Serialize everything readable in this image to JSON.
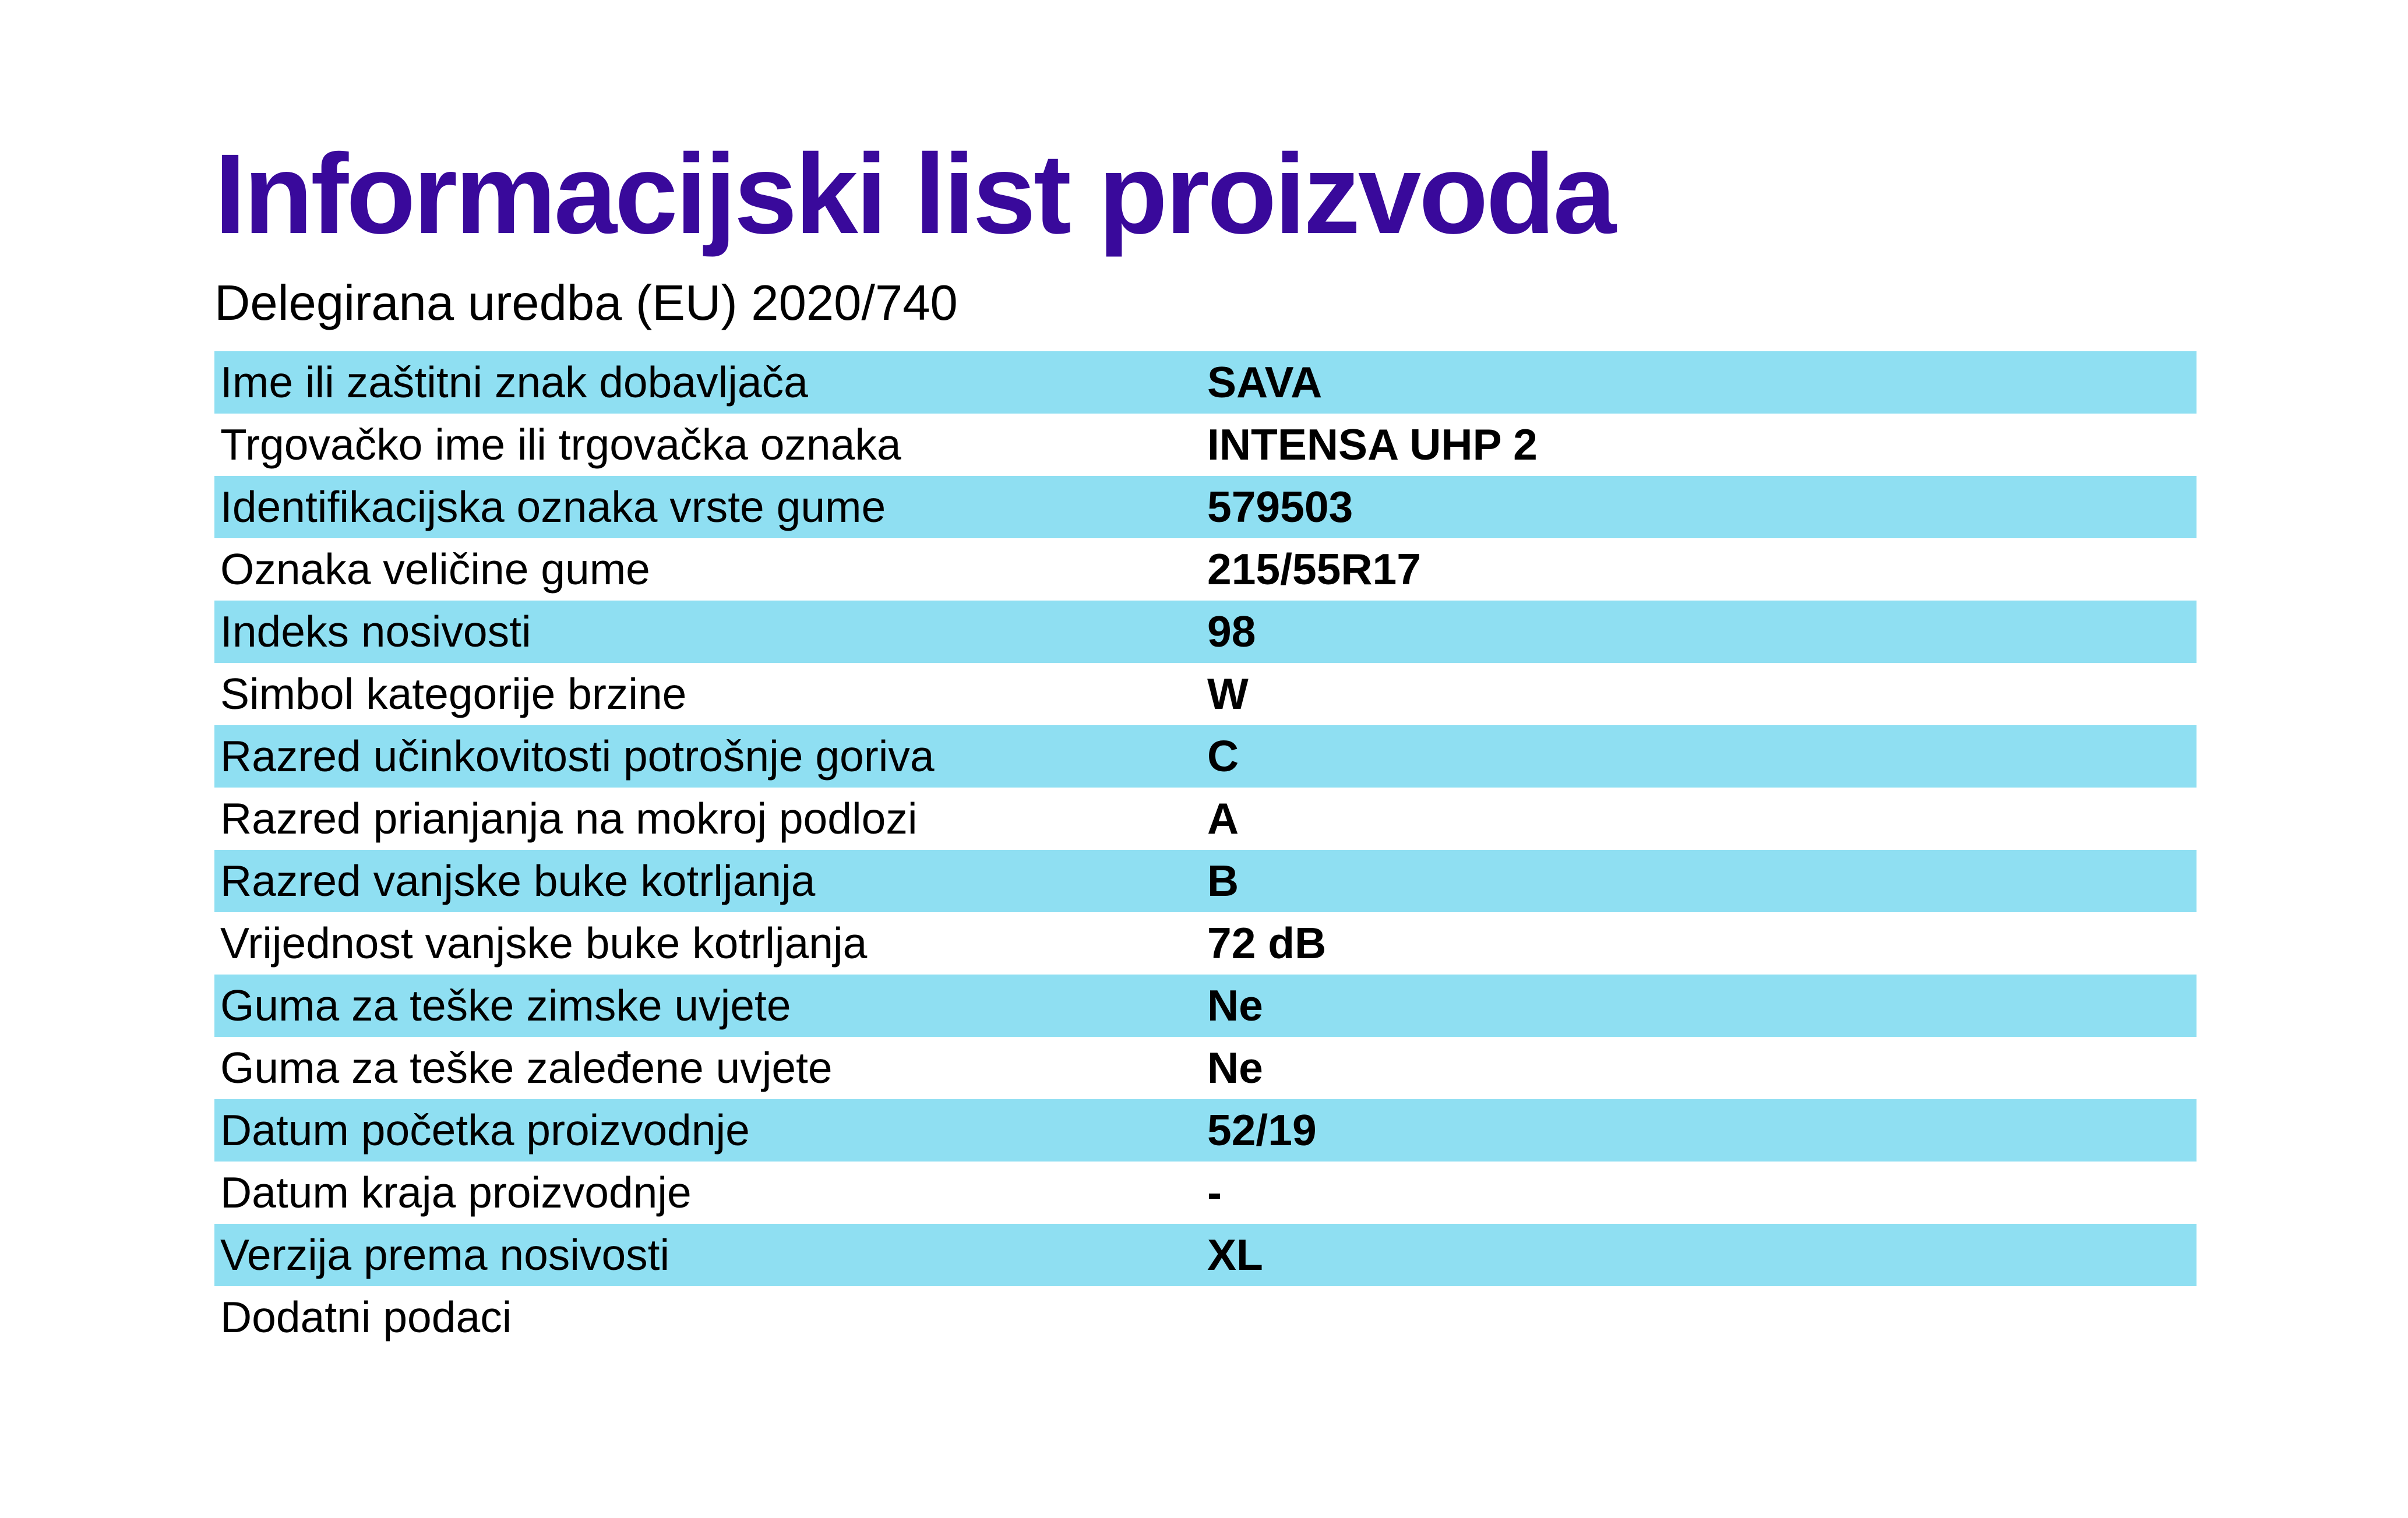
{
  "page": {
    "title": "Informacijski list proizvoda",
    "subtitle": "Delegirana uredba (EU) 2020/740"
  },
  "colors": {
    "title": "#39099B",
    "row_highlight": "#8FDFF2",
    "text": "#000000",
    "background": "#FFFFFF"
  },
  "table": {
    "rows": [
      {
        "label": "Ime ili zaštitni znak dobavljača",
        "value": "SAVA",
        "highlighted": true
      },
      {
        "label": "Trgovačko ime ili trgovačka oznaka",
        "value": "INTENSA UHP 2",
        "highlighted": false
      },
      {
        "label": "Identifikacijska oznaka vrste gume",
        "value": "579503",
        "highlighted": true
      },
      {
        "label": "Oznaka veličine gume",
        "value": "215/55R17",
        "highlighted": false
      },
      {
        "label": "Indeks nosivosti",
        "value": "98",
        "highlighted": true
      },
      {
        "label": "Simbol kategorije brzine",
        "value": "W",
        "highlighted": false
      },
      {
        "label": "Razred učinkovitosti potrošnje goriva",
        "value": "C",
        "highlighted": true
      },
      {
        "label": "Razred prianjanja na mokroj podlozi",
        "value": "A",
        "highlighted": false
      },
      {
        "label": "Razred vanjske buke kotrljanja",
        "value": "B",
        "highlighted": true
      },
      {
        "label": "Vrijednost vanjske buke kotrljanja",
        "value": "72 dB",
        "highlighted": false
      },
      {
        "label": "Guma za teške zimske uvjete",
        "value": "Ne",
        "highlighted": true
      },
      {
        "label": "Guma za teške zaleđene uvjete",
        "value": "Ne",
        "highlighted": false
      },
      {
        "label": "Datum početka proizvodnje",
        "value": "52/19",
        "highlighted": true
      },
      {
        "label": "Datum kraja proizvodnje",
        "value": "-",
        "highlighted": false
      },
      {
        "label": "Verzija prema nosivosti",
        "value": "XL",
        "highlighted": true
      },
      {
        "label": "Dodatni podaci",
        "value": "",
        "highlighted": false
      }
    ]
  }
}
